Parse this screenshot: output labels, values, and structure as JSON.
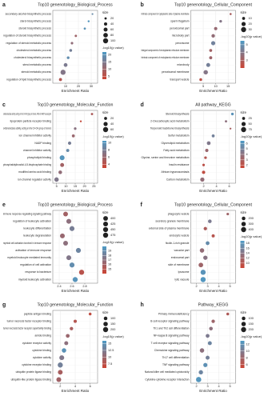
{
  "chart_data": [
    {
      "panel": "a",
      "type": "dot",
      "title": "Top10 genenotology_Biological_Process",
      "x_label": "Enrichment Ratio",
      "categories": [
        "secondary alcohol biosynthetic process",
        "sterol biosynthetic process",
        "steroid biosynthetic process",
        "regulation of steroid biosynthetic process",
        "regulation of steroid metabolic process",
        "cholesterol metabolic process",
        "cholesterol biosynthetic process",
        "sterol metabolic process",
        "steroid metabolic process",
        "regulation of lipid biosynthetic process"
      ],
      "values": [
        31,
        28,
        25,
        18,
        15,
        14,
        12,
        10,
        8,
        6
      ],
      "sizes": [
        12,
        15,
        18,
        20,
        24,
        30,
        28,
        55,
        98,
        35
      ],
      "color_values": [
        18,
        21,
        20,
        10,
        12,
        16,
        19,
        15,
        14,
        7
      ],
      "xlim": [
        0,
        35
      ],
      "xticks": [
        10,
        20,
        30
      ],
      "size_legend": {
        "title": "size",
        "values": [
          20,
          40,
          60,
          80,
          100
        ]
      },
      "colorbar": {
        "title": "-log10(p value)",
        "lim": [
          3,
          22
        ],
        "ticks": [
          5,
          10,
          15,
          20
        ],
        "colors": [
          "#cd4433",
          "#4d9bc6"
        ]
      }
    },
    {
      "panel": "b",
      "type": "dot",
      "title": "Top10 genenotology_Cellular_Component",
      "x_label": "Enrichment Ratio",
      "categories": [
        "intrinsic component of cytoplasmic side of plasma membrane",
        "sperm flagellum",
        "peroxisomal part",
        "microbody part",
        "peroxisome",
        "integral component of endoplasmic reticulum membrane",
        "intrinsic component of endoplasmic reticulum membrane",
        "microbody",
        "peroxisomal membrane",
        "transport vesicle"
      ],
      "values": [
        16,
        12,
        10,
        9,
        9,
        8,
        8,
        7,
        6,
        4
      ],
      "sizes": [
        5,
        8,
        12,
        14,
        20,
        10,
        11,
        18,
        22,
        9
      ],
      "color_values": [
        3,
        4,
        3.5,
        3.6,
        4.5,
        3.2,
        3.3,
        4.4,
        4,
        2.5
      ],
      "xlim": [
        0,
        18
      ],
      "xticks": [
        5,
        10,
        15
      ],
      "size_legend": {
        "title": "size",
        "values": [
          10,
          20,
          30
        ]
      },
      "colorbar": {
        "title": "-log10(p value)",
        "lim": [
          2,
          5.5
        ],
        "ticks": [
          3,
          4,
          5
        ],
        "colors": [
          "#cd4433",
          "#4d9bc6"
        ]
      }
    },
    {
      "panel": "c",
      "type": "dot",
      "title": "Top10 genenotology_Molecular_Function",
      "x_label": "Enrichment Ratio",
      "categories": [
        "oxidoreductase activity, acting on the CH-OH group of donors, NAD or NADP as acceptor",
        "lipoprotein particle receptor binding",
        "oxidoreductase activity, acting on the CH-OH group of donors",
        "ion channel inhibitor activity",
        "NADP binding",
        "channel inhibitor activity",
        "phospholipid binding",
        "phosphatidylinositol-4,5-bisphosphate binding",
        "modified amino acid binding",
        "ion channel regulator activity"
      ],
      "values": [
        24,
        18,
        15,
        14,
        12,
        11,
        8,
        8,
        7,
        5
      ],
      "sizes": [
        12,
        8,
        15,
        20,
        25,
        22,
        55,
        35,
        30,
        45
      ],
      "color_values": [
        5,
        3.5,
        7,
        6,
        8,
        9,
        10,
        5.5,
        6.5,
        7.5
      ],
      "xlim": [
        3,
        27
      ],
      "xticks": [
        5,
        10,
        15,
        20,
        25
      ],
      "size_legend": {
        "title": "size",
        "values": [
          20,
          40,
          60
        ]
      },
      "colorbar": {
        "title": "-log10(p value)",
        "lim": [
          3,
          10.5
        ],
        "ticks": [
          4,
          6,
          8,
          10
        ],
        "colors": [
          "#cd4433",
          "#4d9bc6"
        ]
      }
    },
    {
      "panel": "d",
      "type": "dot",
      "title": "All pathway_KEGG",
      "x_label": "Enrichment Ratio",
      "categories": [
        "Steroid biosynthesis",
        "2-Oxocarboxylic acid metabolism",
        "Terpenoid backbone biosynthesis",
        "Sulfur metabolism",
        "Glycerolipid metabolism",
        "Fatty acid metabolism",
        "Glycine, serine and threonine metabolism",
        "Insulin resistance",
        "African trypanosomiasis",
        "Carbon metabolism"
      ],
      "values": [
        6.5,
        5.5,
        6.2,
        3.5,
        2.8,
        2.5,
        2.3,
        2,
        2,
        1.8
      ],
      "sizes": [
        20,
        15,
        10,
        25,
        40,
        30,
        20,
        18,
        30,
        50
      ],
      "color_values": [
        6,
        4,
        3,
        5,
        4.5,
        3.5,
        2.5,
        2.2,
        2,
        3.8
      ],
      "xlim": [
        0,
        7
      ],
      "xticks": [
        2,
        4,
        6
      ],
      "size_legend": {
        "title": "size",
        "values": [
          25,
          50,
          75
        ]
      },
      "colorbar": {
        "title": "-log10(p value)",
        "lim": [
          1.5,
          6.5
        ],
        "ticks": [
          2,
          3,
          4,
          5,
          6
        ],
        "colors": [
          "#cd4433",
          "#4d9bc6"
        ]
      }
    },
    {
      "panel": "e",
      "type": "dot",
      "title": "Top10 genenotology_Biological_Process",
      "x_label": "Enrichment Ratio",
      "categories": [
        "immune response-regulating signaling pathway",
        "regulation of leukocyte activation",
        "leukocyte differentiation",
        "leukocyte degranulation",
        "myeloid cell activation involved in immune response",
        "activation of immune response",
        "myeloid leukocyte mediated immunity",
        "regulation of cell activation",
        "response to bacterium",
        "myeloid leukocyte activation"
      ],
      "values": [
        2.5,
        2.55,
        2.6,
        2.45,
        2.5,
        2.7,
        2.55,
        2.6,
        2.75,
        2.65
      ],
      "sizes": [
        410,
        430,
        440,
        420,
        415,
        450,
        425,
        445,
        470,
        460
      ],
      "color_values": [
        16,
        17,
        18,
        16.5,
        17,
        18.5,
        17.5,
        19,
        15,
        19.5
      ],
      "xlim": [
        2.3,
        3.0
      ],
      "xticks": [
        2.4,
        2.6,
        2.8
      ],
      "size_legend": {
        "title": "size",
        "values": [
          400,
          425,
          450,
          475
        ]
      },
      "colorbar": {
        "title": "-log10(p value)",
        "lim": [
          14,
          20
        ],
        "ticks": [
          15,
          16,
          17,
          18,
          19
        ],
        "colors": [
          "#cd4433",
          "#4d9bc6"
        ]
      }
    },
    {
      "panel": "f",
      "type": "dot",
      "title": "Top10 genenotology_Cellular_Component",
      "x_label": "Enrichment Ratio",
      "categories": [
        "phagocytic vesicle",
        "secretory granule membrane",
        "external side of plasma membrane",
        "endocytic vesicle",
        "ficolin-1-rich granule",
        "vacuolar part",
        "endosomal part",
        "side of membrane",
        "lysosome",
        "lytic vacuole"
      ],
      "values": [
        4.8,
        3.2,
        2.8,
        3.5,
        3,
        2.5,
        2.8,
        2.4,
        2.6,
        2.6
      ],
      "sizes": [
        100,
        200,
        180,
        150,
        220,
        300,
        280,
        320,
        400,
        410
      ],
      "color_values": [
        12,
        15,
        11,
        10,
        17,
        13,
        14,
        12,
        18,
        18.5
      ],
      "xlim": [
        1.5,
        5.5
      ],
      "xticks": [
        2,
        3,
        4,
        5
      ],
      "size_legend": {
        "title": "size",
        "values": [
          200,
          300,
          400
        ]
      },
      "colorbar": {
        "title": "-log10(p value)",
        "lim": [
          8,
          19
        ],
        "ticks": [
          10,
          12,
          14,
          16,
          18
        ],
        "colors": [
          "#cd4433",
          "#4d9bc6"
        ]
      }
    },
    {
      "panel": "g",
      "type": "dot",
      "title": "Top10 genenotology_Molecular_Function",
      "x_label": "Enrichment Ratio",
      "categories": [
        "peptide antigen binding",
        "tumor necrosis factor receptor binding",
        "tumor necrosis factor receptor superfamily binding",
        "amide binding",
        "cytokine receptor activity",
        "cytokine binding",
        "cytokine activity",
        "cytokine receptor binding",
        "ubiquitin protein ligase binding",
        "ubiquitin-like protein ligase binding"
      ],
      "values": [
        6,
        4,
        3.5,
        3,
        2.8,
        2.5,
        2.2,
        2,
        2,
        1.8
      ],
      "sizes": [
        60,
        80,
        90,
        110,
        120,
        150,
        180,
        200,
        170,
        175
      ],
      "color_values": [
        7,
        8,
        9,
        10,
        11,
        15,
        12,
        13,
        9,
        9.5
      ],
      "xlim": [
        1,
        7
      ],
      "xticks": [
        2,
        4,
        6
      ],
      "size_legend": {
        "title": "size",
        "values": [
          100,
          150,
          200
        ]
      },
      "colorbar": {
        "title": "-log10(p value)",
        "lim": [
          6,
          16
        ],
        "ticks": [
          7.5,
          10,
          12.5,
          15
        ],
        "colors": [
          "#cd4433",
          "#4d9bc6"
        ]
      }
    },
    {
      "panel": "h",
      "type": "dot",
      "title": "Pathway_KEGG",
      "x_label": "Enrichment Ratio",
      "categories": [
        "Primary immunodeficiency",
        "B cell receptor signaling pathway",
        "Th1 and Th2 cell differentiation",
        "NF-kappa B signaling pathway",
        "T cell receptor signaling pathway",
        "Chemokine signaling pathway",
        "Th17 cell differentiation",
        "TNF signaling pathway",
        "Natural killer cell mediated cytotoxicity",
        "Cytokine-cytokine receptor interaction"
      ],
      "values": [
        4.8,
        3.5,
        3.3,
        3,
        3.2,
        2.5,
        3,
        2.8,
        2.4,
        2.2
      ],
      "sizes": [
        60,
        90,
        100,
        110,
        120,
        150,
        120,
        130,
        140,
        210
      ],
      "color_values": [
        7,
        8,
        9,
        10,
        11,
        9,
        10.5,
        12,
        11,
        12.5
      ],
      "xlim": [
        1.5,
        5.5
      ],
      "xticks": [
        2,
        3,
        4,
        5
      ],
      "size_legend": {
        "title": "size",
        "values": [
          100,
          150,
          200
        ]
      },
      "colorbar": {
        "title": "-log10(p value)",
        "lim": [
          5,
          13
        ],
        "ticks": [
          6,
          8,
          10,
          12
        ],
        "colors": [
          "#cd4433",
          "#4d9bc6"
        ]
      }
    }
  ]
}
